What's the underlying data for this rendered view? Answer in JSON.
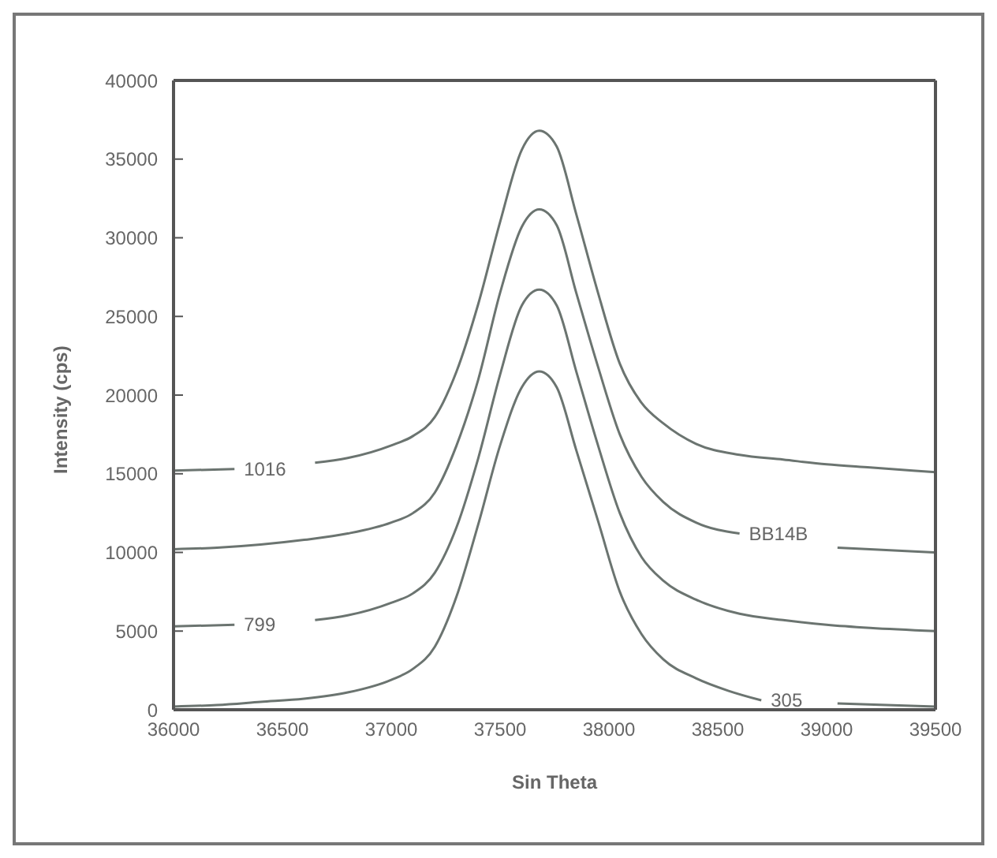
{
  "chart_data": {
    "type": "line",
    "xlabel": "Sin Theta",
    "ylabel": "Intensity (cps)",
    "xlim": [
      36000,
      39500
    ],
    "xticks": [
      36000,
      36500,
      37000,
      37500,
      38000,
      38500,
      39000,
      39500
    ],
    "ylim": [
      0,
      40000
    ],
    "yticks": [
      0,
      5000,
      10000,
      15000,
      20000,
      25000,
      30000,
      35000,
      40000
    ],
    "grid": false,
    "legend": false,
    "marker": "none",
    "line_style": "solid",
    "series": [
      {
        "name": "1016",
        "color": "#6b7470",
        "x": [
          36000,
          36280,
          36450,
          36650,
          36800,
          37000,
          37100,
          37200,
          37300,
          37400,
          37500,
          37600,
          37680,
          37760,
          37850,
          37950,
          38050,
          38150,
          38250,
          38400,
          38600,
          38800,
          39000,
          39200,
          39500
        ],
        "values": [
          15200,
          15300,
          null,
          15700,
          16000,
          16800,
          17400,
          18600,
          21500,
          25800,
          31000,
          35600,
          36800,
          35800,
          31500,
          26500,
          22000,
          19500,
          18200,
          16900,
          16200,
          15900,
          15600,
          15400,
          15100
        ]
      },
      {
        "name": "BB14B",
        "color": "#6b7470",
        "x": [
          36000,
          36200,
          36400,
          36600,
          36800,
          37000,
          37100,
          37200,
          37300,
          37400,
          37500,
          37600,
          37680,
          37760,
          37850,
          37950,
          38050,
          38150,
          38250,
          38400,
          38600,
          38800,
          39050,
          39200,
          39500
        ],
        "values": [
          10200,
          10300,
          10500,
          10800,
          11200,
          11900,
          12500,
          13800,
          16800,
          21000,
          26500,
          30700,
          31800,
          30800,
          26500,
          21800,
          17500,
          14800,
          13200,
          11900,
          11200,
          null,
          10300,
          10200,
          10000
        ]
      },
      {
        "name": "799",
        "color": "#6b7470",
        "x": [
          36000,
          36280,
          36450,
          36650,
          36800,
          37000,
          37100,
          37200,
          37300,
          37400,
          37500,
          37600,
          37680,
          37760,
          37850,
          37950,
          38050,
          38150,
          38250,
          38400,
          38600,
          38800,
          39000,
          39200,
          39500
        ],
        "values": [
          5300,
          5400,
          null,
          5700,
          6000,
          6800,
          7400,
          8700,
          11600,
          16000,
          21300,
          25700,
          26700,
          25700,
          21500,
          16800,
          12500,
          9700,
          8200,
          7000,
          6100,
          5700,
          5400,
          5200,
          5000
        ]
      },
      {
        "name": "305",
        "color": "#6b7470",
        "x": [
          36000,
          36200,
          36400,
          36600,
          36800,
          37000,
          37100,
          37200,
          37300,
          37400,
          37500,
          37600,
          37680,
          37760,
          37850,
          37950,
          38050,
          38150,
          38250,
          38400,
          38550,
          38700,
          38850,
          39050,
          39500
        ],
        "values": [
          200,
          300,
          500,
          700,
          1100,
          1900,
          2600,
          4000,
          7200,
          11800,
          16800,
          20500,
          21500,
          20500,
          16500,
          12000,
          7500,
          4800,
          3200,
          2000,
          1200,
          600,
          null,
          400,
          200
        ]
      }
    ]
  }
}
